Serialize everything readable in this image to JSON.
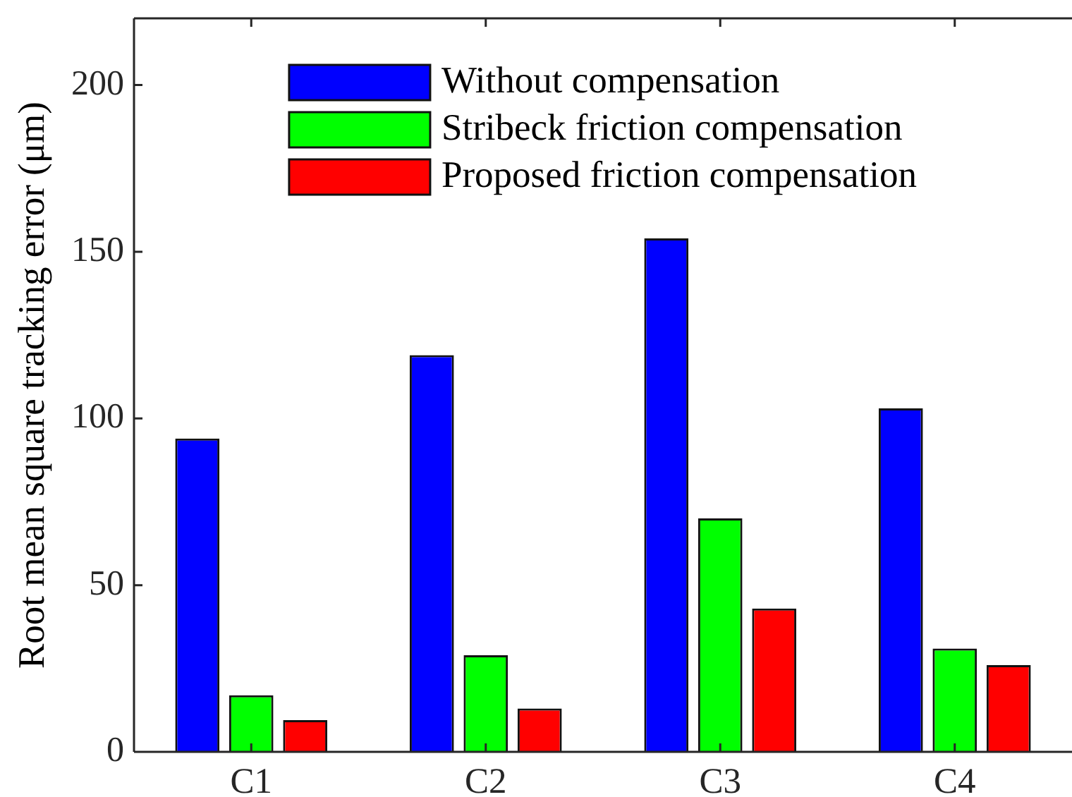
{
  "chart_data": {
    "type": "bar",
    "ylabel": "Root mean square tracking error (μm)",
    "categories": [
      "C1",
      "C2",
      "C3",
      "C4"
    ],
    "series": [
      {
        "name": "Without compensation",
        "color": "#0000ff",
        "values": [
          94,
          119,
          154,
          103
        ]
      },
      {
        "name": "Stribeck friction compensation",
        "color": "#00ff00",
        "values": [
          17,
          29,
          70,
          31
        ]
      },
      {
        "name": "Proposed friction compensation",
        "color": "#ff0000",
        "values": [
          9.5,
          13,
          43,
          26
        ]
      }
    ],
    "ylim": [
      0,
      220
    ],
    "yticks": [
      0,
      50,
      100,
      150,
      200
    ],
    "legend": "top"
  }
}
